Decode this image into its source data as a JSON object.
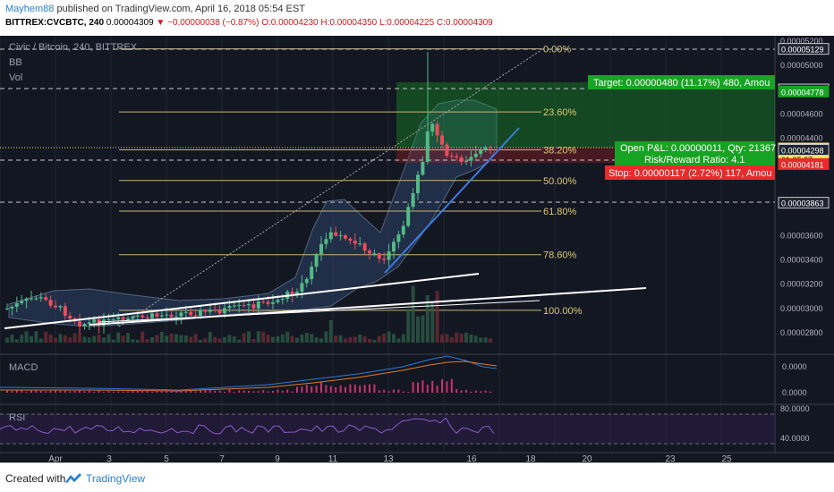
{
  "header": {
    "author": "Mayhem88",
    "published": "published on TradingView.com, April 16, 2018 05:54 EST",
    "symbol_line": "BITTREX:CVCBTC, 240",
    "last": "0.00004309",
    "change": "▼ −0.00000038 (−0.87%)",
    "ohlc": "O:0.00004230 H:0.00004350 L:0.00004225 C:0.00004309"
  },
  "legend": {
    "title": "Civic / Bitcoin, 240, BITTREX",
    "indicator1": "BB",
    "indicator2": "Vol",
    "macd": "MACD",
    "rsi": "RSI"
  },
  "chart_data": {
    "type": "candlestick",
    "title": "Civic / Bitcoin, 240, BITTREX",
    "x_tick_labels": [
      "Apr",
      "3",
      "5",
      "7",
      "9",
      "11",
      "13",
      "16",
      "18",
      "20",
      "23",
      "25"
    ],
    "price_axis_labels": [
      "0.00005200",
      "0.00005000",
      "0.00004600",
      "0.00004400",
      "0.00004200",
      "0.00003600",
      "0.00003400",
      "0.00003200",
      "0.00003000",
      "0.00002800"
    ],
    "price_tags": [
      {
        "value": "0.00005129",
        "color": "#1e2330"
      },
      {
        "value": "0.00004795",
        "color": "#1e2330"
      },
      {
        "value": "0.00004778",
        "color": "#17a323"
      },
      {
        "value": "0.00004309",
        "color": "#f5e663"
      },
      {
        "value": "01:05:27",
        "color": "#f5e663"
      },
      {
        "value": "0.00004298",
        "color": "#1e2330"
      },
      {
        "value": "0.00004181",
        "color": "#e82a2a"
      },
      {
        "value": "0.00003863",
        "color": "#1e2330"
      }
    ],
    "fibonacci": [
      {
        "label": "0.00%",
        "price": 5.129e-05
      },
      {
        "label": "23.60%",
        "price": 4.61e-05
      },
      {
        "label": "38.20%",
        "price": 4.298e-05
      },
      {
        "label": "50.00%",
        "price": 4.046e-05
      },
      {
        "label": "61.80%",
        "price": 3.794e-05
      },
      {
        "label": "78.60%",
        "price": 3.435e-05
      },
      {
        "label": "100.00%",
        "price": 2.978e-05
      }
    ],
    "position": {
      "target": "Target: 0.00000480 (11.17%) 480, Amou",
      "open_pnl": "Open P&L: 0.00000011, Qty: 21367",
      "risk_reward": "Risk/Reward Ratio: 4.1",
      "stop": "Stop: 0.00000117 (2.72%) 117, Amou"
    },
    "macd_axis": [
      "0.0000",
      "0.0000"
    ],
    "rsi_axis": [
      "80.0000",
      "40.0000"
    ]
  },
  "footer": {
    "created": "Created with",
    "brand": "TradingView"
  }
}
